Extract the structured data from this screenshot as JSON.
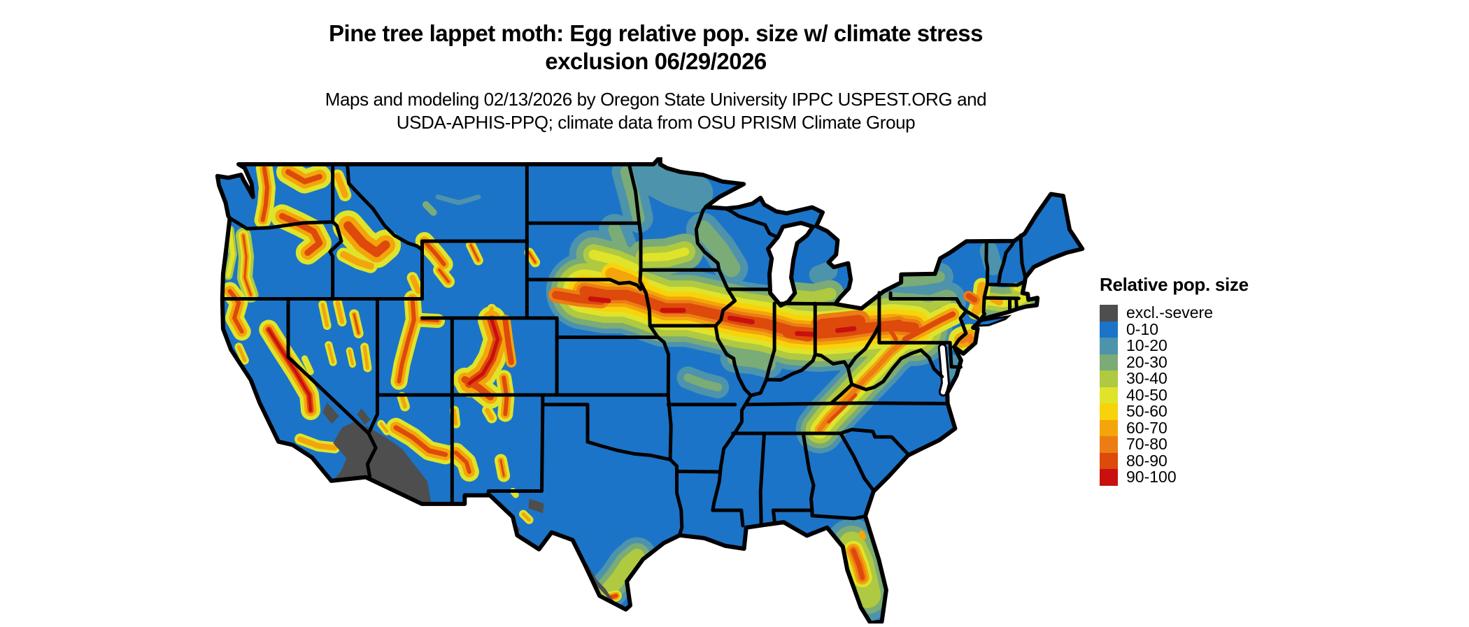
{
  "title": {
    "line1": "Pine tree lappet moth: Egg relative pop. size w/ climate stress",
    "line2": "exclusion 06/29/2026"
  },
  "subtitle": {
    "line1": "Maps and modeling 02/13/2026 by Oregon State University IPPC USPEST.ORG and",
    "line2": "USDA-APHIS-PPQ; climate data from OSU PRISM Climate Group"
  },
  "legend": {
    "title": "Relative pop. size",
    "items": [
      {
        "label": "excl.-severe",
        "color": "#4E4E4E"
      },
      {
        "label": "0-10",
        "color": "#1B74C8"
      },
      {
        "label": "10-20",
        "color": "#4D93AC"
      },
      {
        "label": "20-30",
        "color": "#7BAB76"
      },
      {
        "label": "30-40",
        "color": "#AFC941"
      },
      {
        "label": "40-50",
        "color": "#DFE42B"
      },
      {
        "label": "50-60",
        "color": "#F8D30B"
      },
      {
        "label": "60-70",
        "color": "#F3A50B"
      },
      {
        "label": "70-80",
        "color": "#EC7D14"
      },
      {
        "label": "80-90",
        "color": "#DD4A0B"
      },
      {
        "label": "90-100",
        "color": "#C8100E"
      }
    ]
  },
  "map": {
    "region": "Contiguous United States",
    "ocean_color": "#FFFFFF",
    "state_border_color": "#000000",
    "base_fill_label": "0-10"
  }
}
